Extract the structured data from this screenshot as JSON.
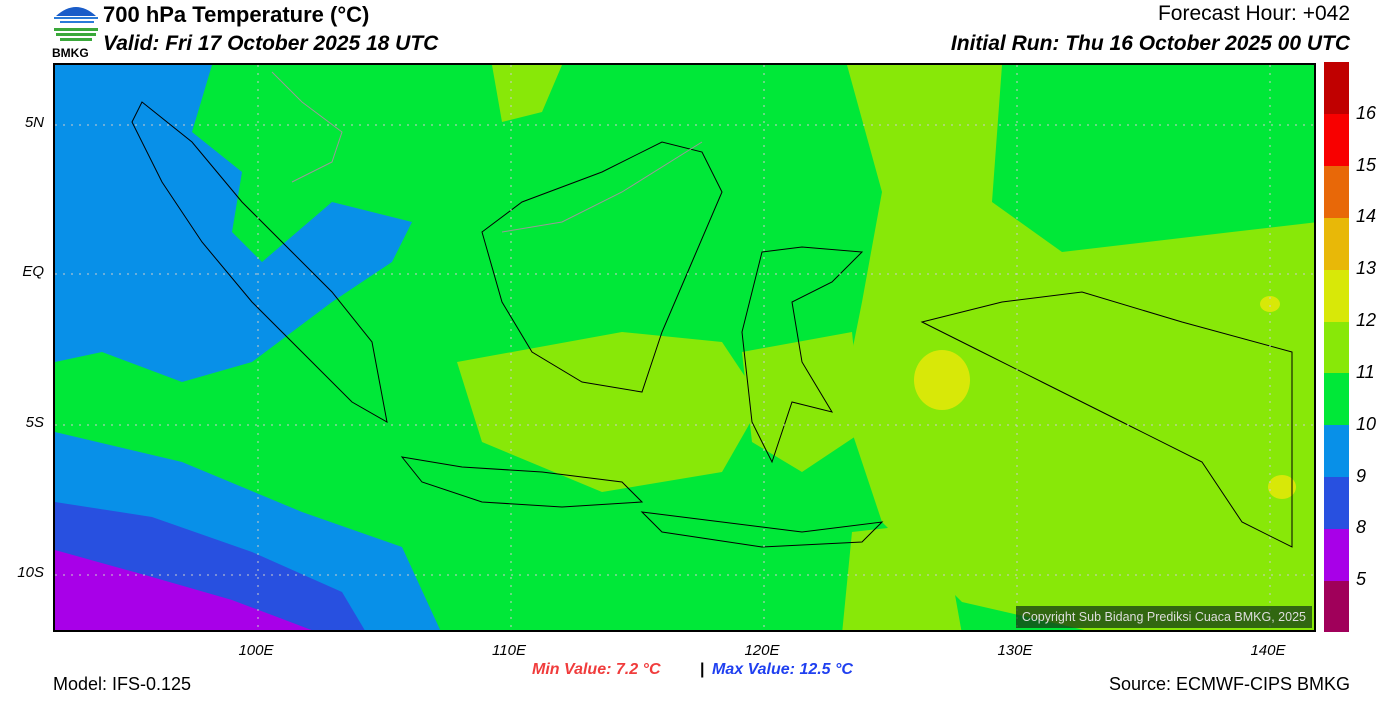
{
  "header": {
    "logo_text": "BMKG",
    "title": "700 hPa Temperature (°C)",
    "valid": "Valid: Fri 17 October 2025 18 UTC",
    "forecast_hour": "Forecast Hour: +042",
    "initial_run": "Initial Run: Thu 16 October 2025 00 UTC"
  },
  "map": {
    "lon_range": [
      92,
      142
    ],
    "lat_range": [
      -12,
      7
    ],
    "lat_ticks": [
      "5N",
      "EQ",
      "5S",
      "10S"
    ],
    "lon_ticks": [
      "100E",
      "110E",
      "120E",
      "130E",
      "140E"
    ],
    "copyright": "Copyright Sub Bidang Prediksi Cuaca BMKG, 2025"
  },
  "colorbar": {
    "colors": [
      "#a0005a",
      "#a800e8",
      "#2850e0",
      "#0890e8",
      "#00e838",
      "#88e808",
      "#d8e808",
      "#e8b808",
      "#e86808",
      "#f80000",
      "#c00000"
    ],
    "labels": [
      "5",
      "8",
      "9",
      "10",
      "11",
      "12",
      "13",
      "14",
      "15",
      "16"
    ]
  },
  "footer": {
    "model": "Model: IFS-0.125",
    "min": "Min Value: 7.2 °C",
    "sep": "|",
    "max": "Max Value: 12.5 °C",
    "source": "Source: ECMWF-CIPS BMKG"
  }
}
